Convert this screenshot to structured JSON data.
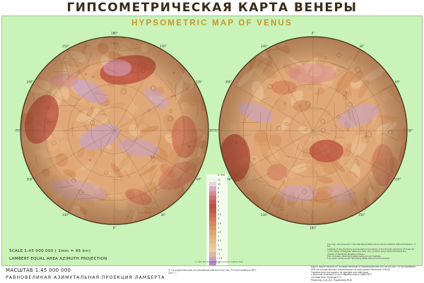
{
  "titles": {
    "ru": "ГИПСОМЕТРИЧЕСКАЯ КАРТА ВЕНЕРЫ",
    "en": "HYPSOMETRIC MAP OF VENUS"
  },
  "colors": {
    "background": "#c9f3b8",
    "globe_base": "#e0a878",
    "lowland": "#c7a1c8",
    "highland": "#b8483a"
  },
  "hemispheres": [
    {
      "id": "western",
      "rim_labels": [
        "180°",
        "150°",
        "120°",
        "90°",
        "60°",
        "30°",
        "0°",
        "330°",
        "300°",
        "270°",
        "240°",
        "210°"
      ]
    },
    {
      "id": "eastern",
      "rim_labels": [
        "0°",
        "30°",
        "60°",
        "90°",
        "120°",
        "150°",
        "180°",
        "210°",
        "240°",
        "270°",
        "300°",
        "330°"
      ]
    }
  ],
  "legend": {
    "header": "h, km",
    "levels": [
      {
        "label": "11",
        "color": "#f2f2f2"
      },
      {
        "label": "10",
        "color": "#e8d3dd"
      },
      {
        "label": "9",
        "color": "#dca7bd"
      },
      {
        "label": "8",
        "color": "#d48b9a"
      },
      {
        "label": "7",
        "color": "#cf6f77"
      },
      {
        "label": "6",
        "color": "#c75a5a"
      },
      {
        "label": "5",
        "color": "#c24e47"
      },
      {
        "label": "4",
        "color": "#c65a45"
      },
      {
        "label": "3.5",
        "color": "#cb6a4a"
      },
      {
        "label": "3",
        "color": "#d07a52"
      },
      {
        "label": "2.5",
        "color": "#d6895c"
      },
      {
        "label": "2",
        "color": "#db9666"
      },
      {
        "label": "1.5",
        "color": "#e0a372"
      },
      {
        "label": "1",
        "color": "#e4ae7e"
      },
      {
        "label": "0.5",
        "color": "#e8b98a"
      },
      {
        "label": "0",
        "color": "#ebc395"
      },
      {
        "label": "-0.5",
        "color": "#edcc9e"
      },
      {
        "label": "-1",
        "color": "#dcb8a8"
      },
      {
        "label": "-1.5",
        "color": "#c89fc3"
      },
      {
        "label": "-2",
        "color": "#b58bd0"
      },
      {
        "label": "-2.5",
        "color": "#a275d6"
      }
    ]
  },
  "scale_en": "SCALE 1:45 000 000  ( 1mm = 45 km)",
  "projection_en": "LAMBERT EQUAL AREA AZIMUTH PROJECTION",
  "copyright_panel": "© 2007 Sternberg State Astronomical Institute 2007",
  "info_en": [
    "The map was prepared in the Sternberg State Astronomical Institute with participation of the",
    "Institute of Geochemistry and Analytical Chemistry of the Russian Academy of Sciences",
    "on the basis of Magellan altimetry data. The contours were traced following the",
    "images of the NASA Magellan mission.",
    "The compilers: Sternberg State Astronomical Institute",
    "The editor of the series: Sternberg State Astronomical Institute"
  ],
  "scale_ru": "МАСШТАБ  1:45 000 000",
  "projection_ru": "РАВНОВЕЛИКАЯ  АЗИМУТАЛЬНАЯ  ПРОЕКЦИЯ  ЛАМБЕРТА",
  "copyright_ru": "© Государственный астрономический институт им. П.К.Штернберга МГУ, 2007 г.",
  "info_ru": [
    "Карта подготовлена в Государственном астрономическом институте им. П.К.Штернберга",
    "МГУ на основе данных альтиметрии по программе Магеллан (НАСА)",
    "Горизонтали построены по данным альтиметрии",
    "с высотой сечения 0.5 км и обработаны в ГАИШ МГУ",
    "Составитель: Лазарев Е.Н.",
    "Редактор: к.ф.-м.н. Родионова Ж.Ф."
  ]
}
